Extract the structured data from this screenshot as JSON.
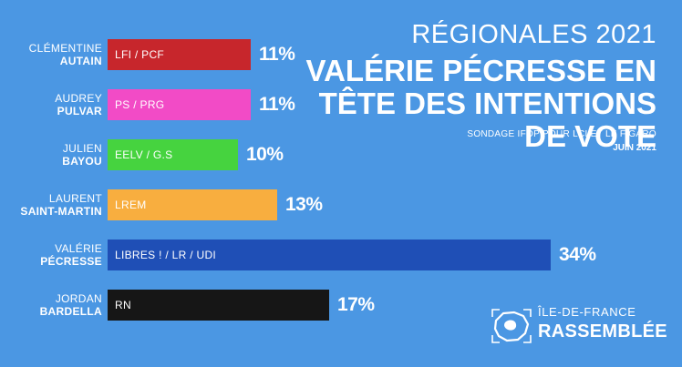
{
  "chart_data": {
    "type": "bar",
    "orientation": "horizontal",
    "title": "RÉGIONALES 2021",
    "subtitle": "VALÉRIE PÉCRESSE EN TÊTE DES INTENTIONS DE VOTE",
    "source": "SONDAGE IFOP POUR LCI ET LE FIGARO",
    "date": "JUIN 2021",
    "value_suffix": "%",
    "items": [
      {
        "first": "CLÉMENTINE",
        "last": "AUTAIN",
        "party": "LFI / PCF",
        "value": 11,
        "label": "11%",
        "color": "#c7262c"
      },
      {
        "first": "AUDREY",
        "last": "PULVAR",
        "party": "PS / PRG",
        "value": 11,
        "label": "11%",
        "color": "#f24bc6"
      },
      {
        "first": "JULIEN",
        "last": "BAYOU",
        "party": "EELV / G.S",
        "value": 10,
        "label": "10%",
        "color": "#46d33f"
      },
      {
        "first": "LAURENT",
        "last": "SAINT-MARTIN",
        "party": "LREM",
        "value": 13,
        "label": "13%",
        "color": "#f8ae3f"
      },
      {
        "first": "VALÉRIE",
        "last": "PÉCRESSE",
        "party": "LIBRES ! / LR / UDI",
        "value": 34,
        "label": "34%",
        "color": "#1f4fb6"
      },
      {
        "first": "JORDAN",
        "last": "BARDELLA",
        "party": "RN",
        "value": 17,
        "label": "17%",
        "color": "#161616"
      }
    ]
  },
  "logo": {
    "line1": "ÎLE-DE-FRANCE",
    "line2": "RASSEMBLÉE"
  },
  "colors": {
    "background": "#4b97e3",
    "text": "#ffffff"
  }
}
